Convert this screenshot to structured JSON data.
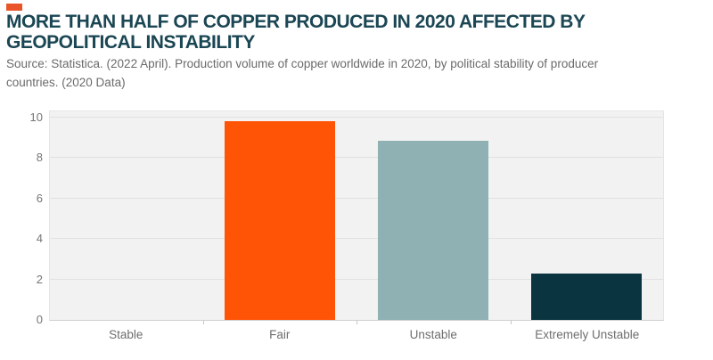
{
  "header": {
    "title": "MORE THAN HALF OF COPPER PRODUCED IN 2020 AFFECTED BY GEOPOLITICAL INSTABILITY",
    "source": "Source: Statistica. (2022 April). Production volume of copper worldwide in 2020, by political stability of producer countries. (2020 Data)",
    "accent_color": "#e95428"
  },
  "chart_data": {
    "type": "bar",
    "categories": [
      "Stable",
      "Fair",
      "Unstable",
      "Extremely Unstable"
    ],
    "values": [
      0,
      9.8,
      8.85,
      2.3
    ],
    "bar_colors": [
      "#c8c8c8",
      "#ff5405",
      "#8fb1b3",
      "#0a3540"
    ],
    "title": "",
    "xlabel": "",
    "ylabel": "",
    "ylim": [
      0,
      10.3
    ],
    "yticks": [
      0,
      2,
      4,
      6,
      8,
      10
    ],
    "grid": "horizontal",
    "legend": "none",
    "plot_bg": "#f2f2f2",
    "gridline_color": "#e1e1e1"
  }
}
